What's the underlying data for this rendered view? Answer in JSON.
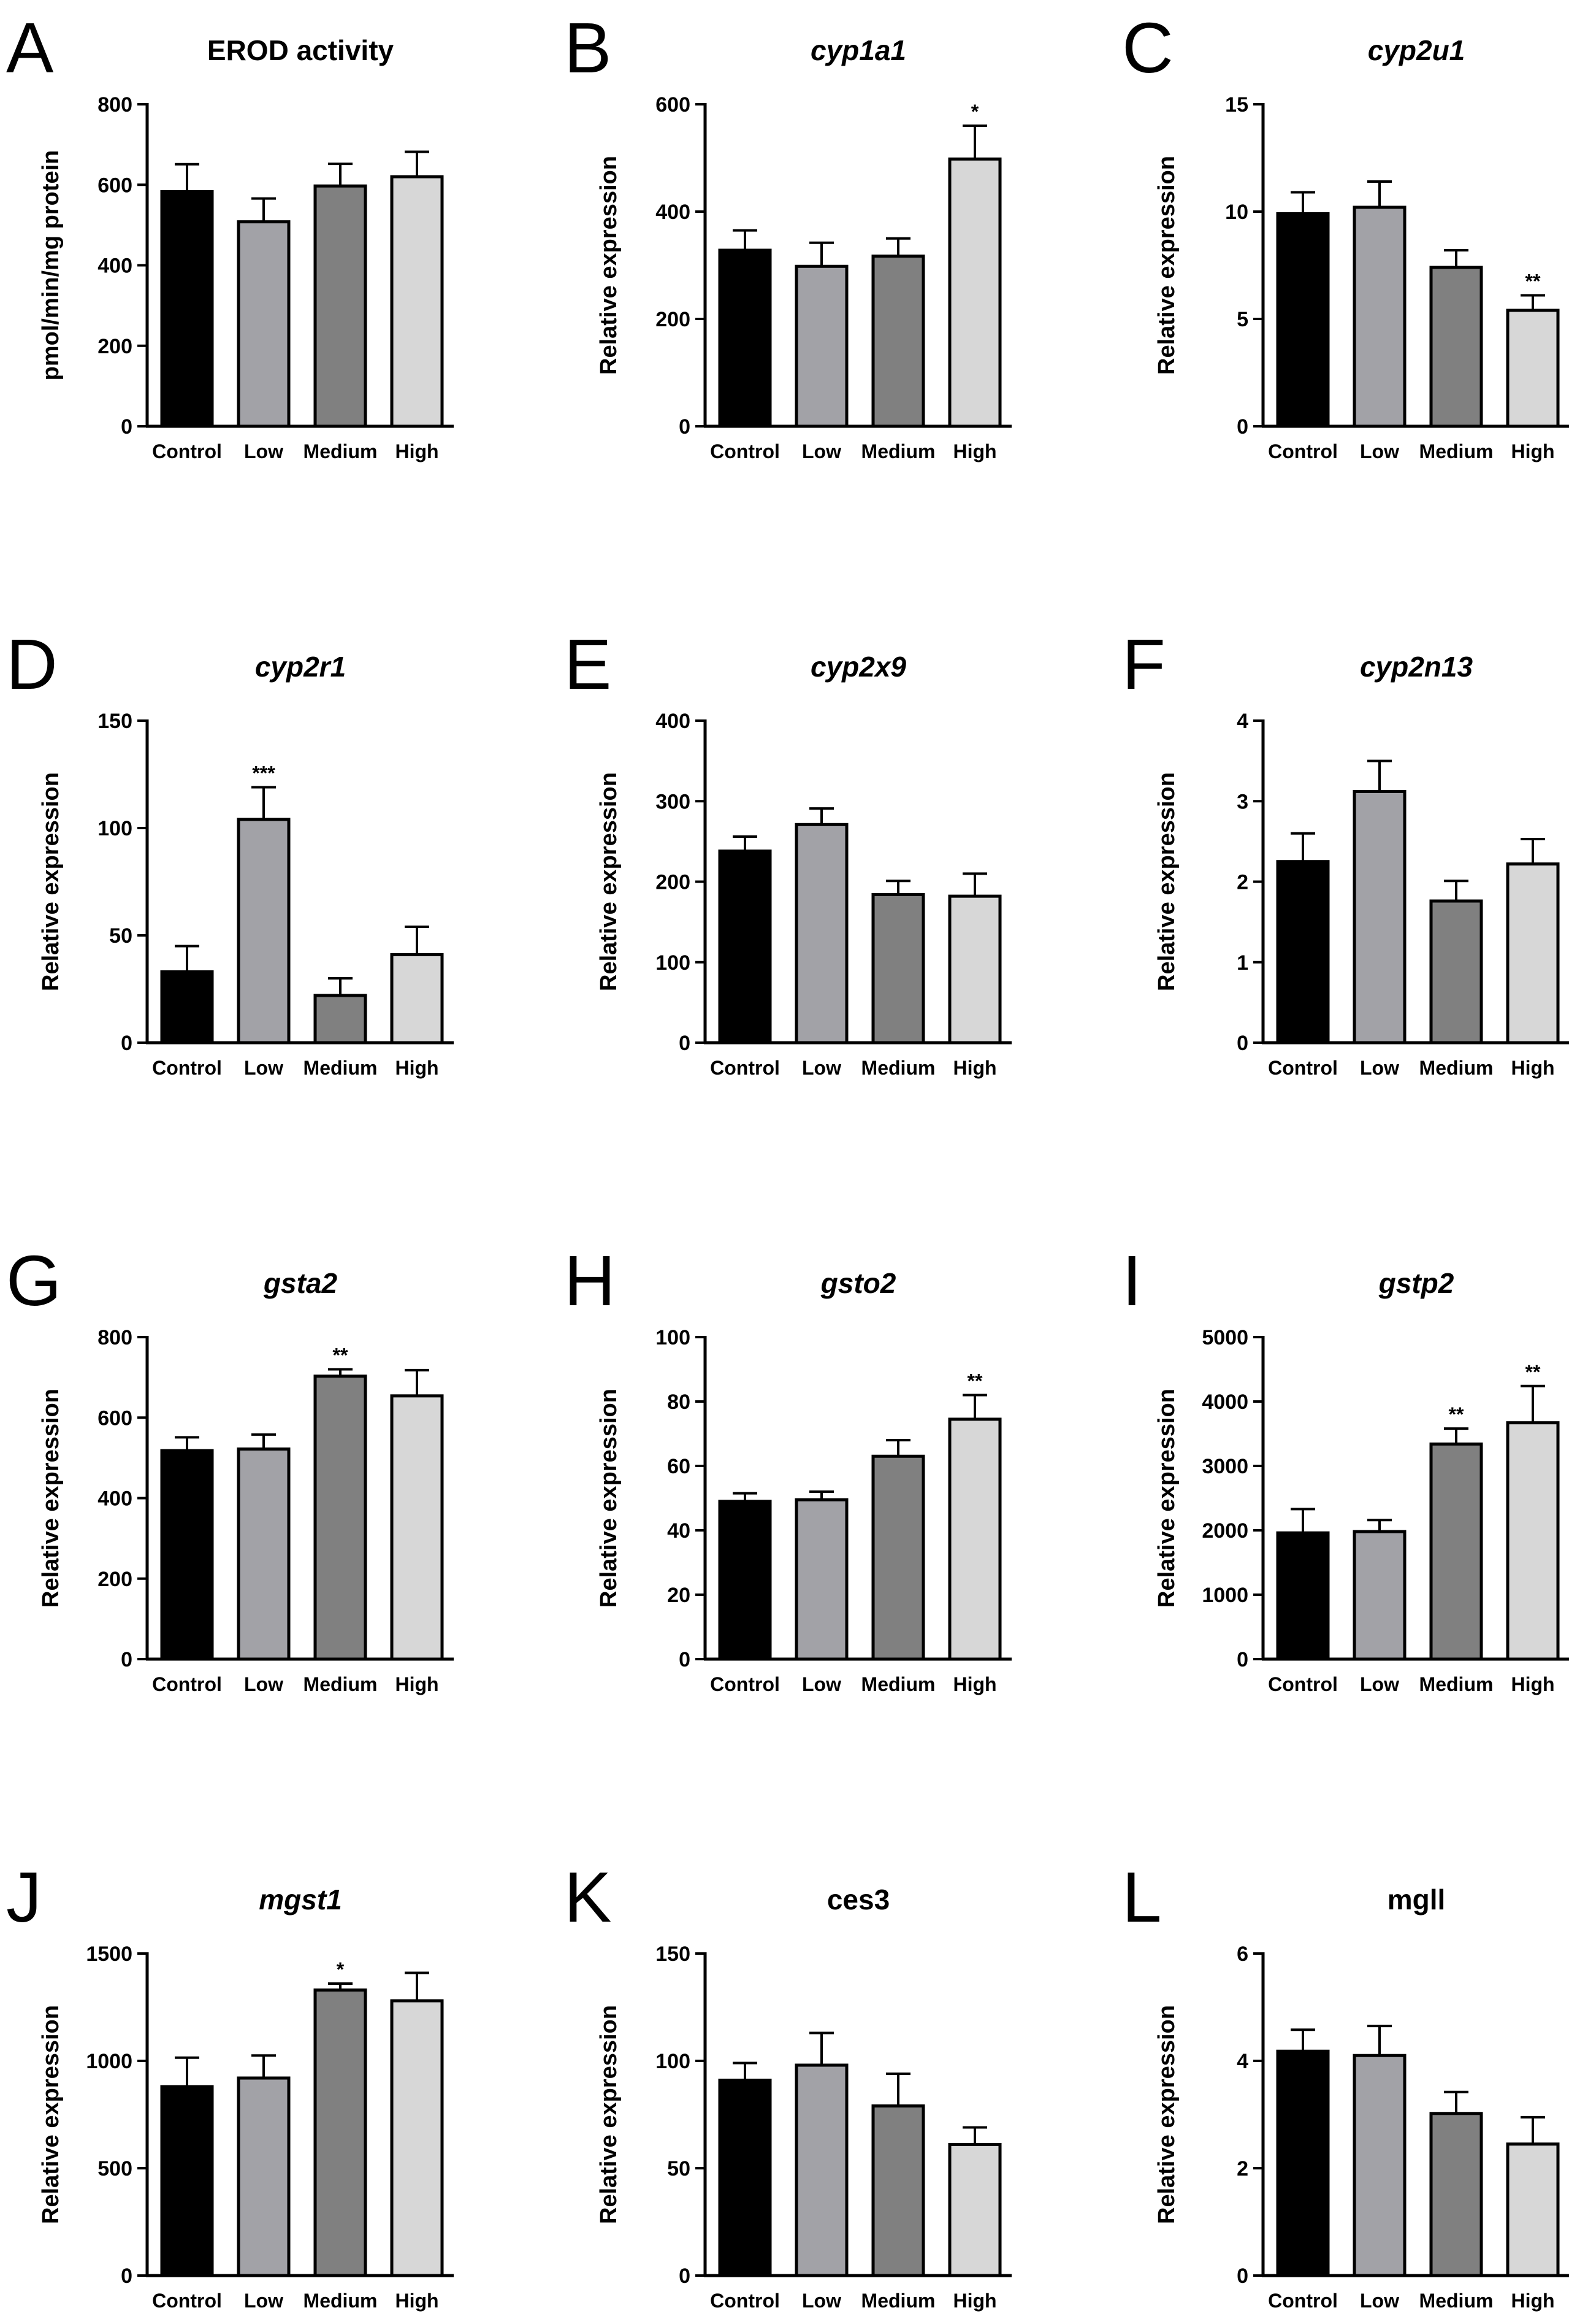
{
  "figure_colors": {
    "Control": "#000000",
    "Low": "#a2a2a7",
    "Medium": "#808080",
    "High": "#d7d7d7"
  },
  "chart_data": [
    {
      "panel": "A",
      "type": "bar",
      "title": "EROD activity",
      "title_style": "normal",
      "ylabel": "pmol/min/mg protein",
      "categories": [
        "Control",
        "Low",
        "Medium",
        "High"
      ],
      "values": [
        583,
        508,
        597,
        620
      ],
      "errors": [
        68,
        58,
        55,
        62
      ],
      "significance": [
        "",
        "",
        "",
        ""
      ],
      "ylim": [
        0,
        800
      ],
      "yticks": [
        "0",
        "200",
        "400",
        "600",
        "800"
      ]
    },
    {
      "panel": "B",
      "type": "bar",
      "title": "cyp1a1",
      "title_style": "italic",
      "ylabel": "Relative expression",
      "categories": [
        "Control",
        "Low",
        "Medium",
        "High"
      ],
      "values": [
        328,
        298,
        317,
        498
      ],
      "errors": [
        37,
        44,
        33,
        62
      ],
      "significance": [
        "",
        "",
        "",
        "*"
      ],
      "ylim": [
        0,
        600
      ],
      "yticks": [
        "0",
        "200",
        "400",
        "600"
      ]
    },
    {
      "panel": "C",
      "type": "bar",
      "title": "cyp2u1",
      "title_style": "italic",
      "ylabel": "Relative expression",
      "categories": [
        "Control",
        "Low",
        "Medium",
        "High"
      ],
      "values": [
        9.9,
        10.2,
        7.4,
        5.4
      ],
      "errors": [
        1.0,
        1.2,
        0.8,
        0.7
      ],
      "significance": [
        "",
        "",
        "",
        "**"
      ],
      "ylim": [
        0,
        15
      ],
      "yticks": [
        "0",
        "5",
        "10",
        "15"
      ]
    },
    {
      "panel": "D",
      "type": "bar",
      "title": "cyp2r1",
      "title_style": "italic",
      "ylabel": "Relative expression",
      "categories": [
        "Control",
        "Low",
        "Medium",
        "High"
      ],
      "values": [
        33,
        104,
        22,
        41
      ],
      "errors": [
        12,
        15,
        8,
        13
      ],
      "significance": [
        "",
        "***",
        "",
        ""
      ],
      "ylim": [
        0,
        150
      ],
      "yticks": [
        "0",
        "50",
        "100",
        "150"
      ]
    },
    {
      "panel": "E",
      "type": "bar",
      "title": "cyp2x9",
      "title_style": "italic",
      "ylabel": "Relative expression",
      "categories": [
        "Control",
        "Low",
        "Medium",
        "High"
      ],
      "values": [
        238,
        271,
        184,
        182
      ],
      "errors": [
        18,
        20,
        17,
        28
      ],
      "significance": [
        "",
        "",
        "",
        ""
      ],
      "ylim": [
        0,
        400
      ],
      "yticks": [
        "0",
        "100",
        "200",
        "300",
        "400"
      ]
    },
    {
      "panel": "F",
      "type": "bar",
      "title": "cyp2n13",
      "title_style": "italic",
      "ylabel": "Relative expression",
      "categories": [
        "Control",
        "Low",
        "Medium",
        "High"
      ],
      "values": [
        2.25,
        3.12,
        1.76,
        2.22
      ],
      "errors": [
        0.35,
        0.38,
        0.25,
        0.31
      ],
      "significance": [
        "",
        "",
        "",
        ""
      ],
      "ylim": [
        0,
        4
      ],
      "yticks": [
        "0",
        "1",
        "2",
        "3",
        "4"
      ]
    },
    {
      "panel": "G",
      "type": "bar",
      "title": "gsta2",
      "title_style": "italic",
      "ylabel": "Relative expression",
      "categories": [
        "Control",
        "Low",
        "Medium",
        "High"
      ],
      "values": [
        518,
        522,
        703,
        654
      ],
      "errors": [
        33,
        36,
        17,
        64
      ],
      "significance": [
        "",
        "",
        "**",
        ""
      ],
      "ylim": [
        0,
        800
      ],
      "yticks": [
        "0",
        "200",
        "400",
        "600",
        "800"
      ]
    },
    {
      "panel": "H",
      "type": "bar",
      "title": "gsto2",
      "title_style": "italic",
      "ylabel": "Relative expression",
      "categories": [
        "Control",
        "Low",
        "Medium",
        "High"
      ],
      "values": [
        49,
        49.5,
        63,
        74.5
      ],
      "errors": [
        2.5,
        2.5,
        5,
        7.5
      ],
      "significance": [
        "",
        "",
        "",
        "**"
      ],
      "ylim": [
        0,
        100
      ],
      "yticks": [
        "0",
        "20",
        "40",
        "60",
        "80",
        "100"
      ]
    },
    {
      "panel": "I",
      "type": "bar",
      "title": "gstp2",
      "title_style": "italic",
      "ylabel": "Relative expression",
      "categories": [
        "Control",
        "Low",
        "Medium",
        "High"
      ],
      "values": [
        1960,
        1980,
        3340,
        3670
      ],
      "errors": [
        370,
        180,
        240,
        570
      ],
      "significance": [
        "",
        "",
        "**",
        "**"
      ],
      "ylim": [
        0,
        5000
      ],
      "yticks": [
        "0",
        "1000",
        "2000",
        "3000",
        "4000",
        "5000"
      ]
    },
    {
      "panel": "J",
      "type": "bar",
      "title": "mgst1",
      "title_style": "italic",
      "ylabel": "Relative expression",
      "categories": [
        "Control",
        "Low",
        "Medium",
        "High"
      ],
      "values": [
        880,
        920,
        1330,
        1280
      ],
      "errors": [
        135,
        105,
        30,
        130
      ],
      "significance": [
        "",
        "",
        "*",
        ""
      ],
      "ylim": [
        0,
        1500
      ],
      "yticks": [
        "0",
        "500",
        "1000",
        "1500"
      ]
    },
    {
      "panel": "K",
      "type": "bar",
      "title": "ces3",
      "title_style": "normal",
      "ylabel": "Relative expression",
      "categories": [
        "Control",
        "Low",
        "Medium",
        "High"
      ],
      "values": [
        91,
        98,
        79,
        61
      ],
      "errors": [
        8,
        15,
        15,
        8
      ],
      "significance": [
        "",
        "",
        "",
        ""
      ],
      "ylim": [
        0,
        150
      ],
      "yticks": [
        "0",
        "50",
        "100",
        "150"
      ]
    },
    {
      "panel": "L",
      "type": "bar",
      "title": "mgll",
      "title_style": "normal",
      "ylabel": "Relative expression",
      "categories": [
        "Control",
        "Low",
        "Medium",
        "High"
      ],
      "values": [
        4.18,
        4.1,
        3.02,
        2.45
      ],
      "errors": [
        0.4,
        0.55,
        0.4,
        0.5
      ],
      "significance": [
        "",
        "",
        "",
        ""
      ],
      "ylim": [
        0,
        6
      ],
      "yticks": [
        "0",
        "2",
        "4",
        "6"
      ]
    }
  ]
}
